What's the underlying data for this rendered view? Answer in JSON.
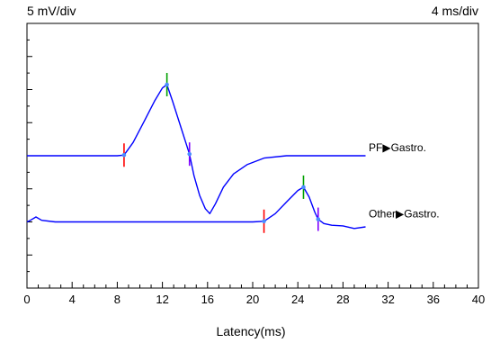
{
  "header": {
    "y_scale": "5 mV/div",
    "x_scale": "4 ms/div"
  },
  "chart_data": {
    "type": "line",
    "xlabel": "Latency(ms)",
    "ylabel": "",
    "xlim": [
      0,
      40
    ],
    "x_ticks": [
      "0",
      "4",
      "8",
      "12",
      "16",
      "20",
      "24",
      "28",
      "32",
      "36",
      "40"
    ],
    "ylim_div": [
      0,
      8
    ],
    "grid": false,
    "series": [
      {
        "name": "PF▶Gastro.",
        "color": "#0000ff",
        "baseline_div": 4,
        "x": [
          0,
          8.0,
          8.6,
          9.4,
          10.4,
          11.3,
          12.0,
          12.4,
          12.9,
          13.6,
          14.4,
          14.8,
          15.3,
          15.8,
          16.2,
          16.7,
          17.4,
          18.3,
          19.5,
          21.0,
          23.0,
          25.0,
          27.5,
          29.0,
          30.0
        ],
        "y": [
          0,
          0,
          0.02,
          0.4,
          1.05,
          1.65,
          2.05,
          2.15,
          1.65,
          0.9,
          0.05,
          -0.6,
          -1.2,
          -1.6,
          -1.75,
          -1.45,
          -0.95,
          -0.55,
          -0.27,
          -0.07,
          0,
          0,
          0,
          0,
          0
        ],
        "markers": [
          {
            "x": 8.6,
            "color": "#ff0000",
            "y": 0.02
          },
          {
            "x": 12.4,
            "color": "#00a000",
            "y": 2.15
          },
          {
            "x": 14.4,
            "color": "#8000ff",
            "y": 0.05
          }
        ]
      },
      {
        "name": "Other▶Gastro.",
        "color": "#0000ff",
        "baseline_div": 2,
        "x": [
          0,
          0.3,
          0.8,
          1.3,
          2.5,
          8,
          14,
          20,
          21.0,
          22.0,
          23.0,
          24.0,
          24.5,
          25.0,
          25.5,
          25.8,
          26.3,
          27.0,
          28.0,
          29.0,
          30.0
        ],
        "y": [
          0,
          0.05,
          0.15,
          0.05,
          0,
          0,
          0,
          0,
          0.02,
          0.25,
          0.6,
          0.95,
          1.05,
          0.75,
          0.3,
          0.08,
          -0.05,
          -0.1,
          -0.12,
          -0.2,
          -0.15
        ],
        "markers": [
          {
            "x": 21.0,
            "color": "#ff0000",
            "y": 0.02
          },
          {
            "x": 24.5,
            "color": "#00a000",
            "y": 1.05
          },
          {
            "x": 25.8,
            "color": "#8000ff",
            "y": 0.08
          }
        ]
      }
    ]
  }
}
